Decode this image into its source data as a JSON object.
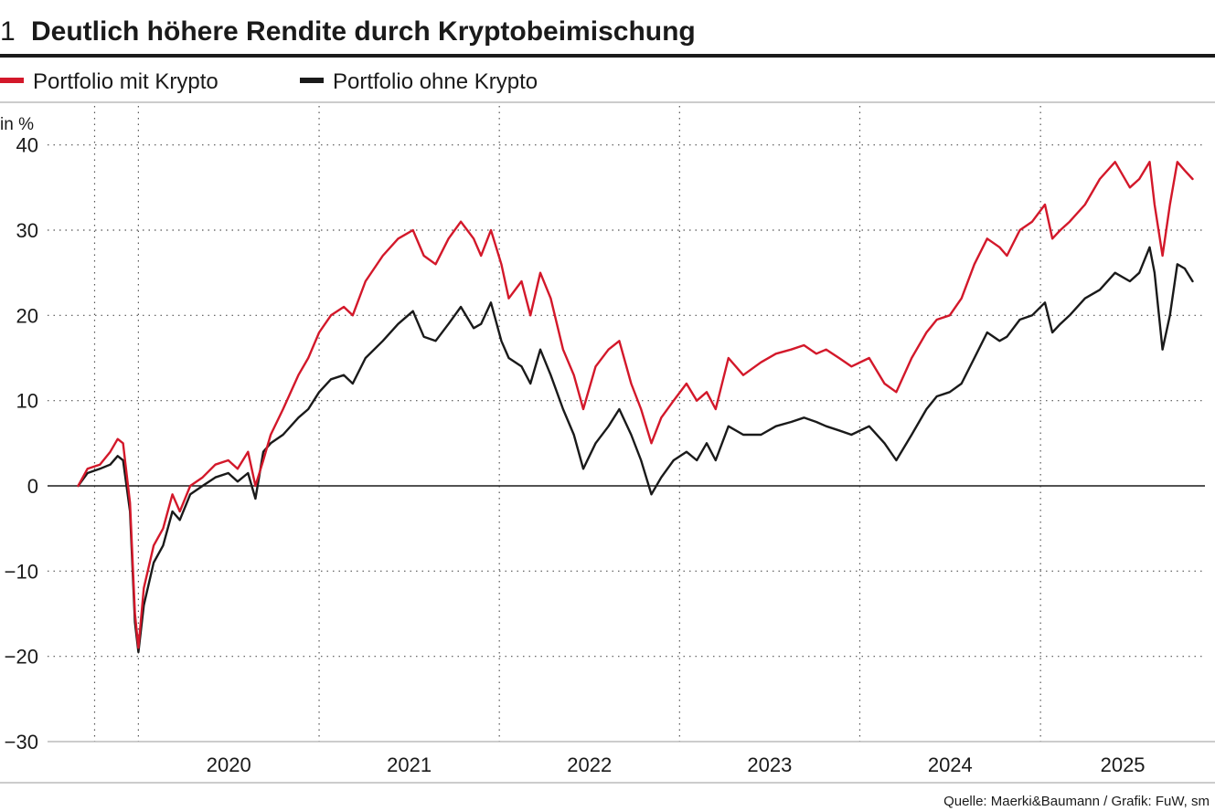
{
  "header": {
    "number": "1",
    "title": "Deutlich höhere Rendite durch Kryptobeimischung"
  },
  "source": "Quelle: Maerki&Baumann / Grafik: FuW, sm",
  "chart_data": {
    "type": "line",
    "ylabel": "in %",
    "ylim": [
      -30,
      45
    ],
    "yticks": [
      40,
      30,
      20,
      10,
      0,
      -10,
      -20,
      -30
    ],
    "xlim": [
      "2019-07-01",
      "2025-11-30"
    ],
    "xticks": [
      {
        "label": "2020",
        "date": "2020-01-01"
      },
      {
        "label": "2021",
        "date": "2021-01-01"
      },
      {
        "label": "2022",
        "date": "2022-01-01"
      },
      {
        "label": "2023",
        "date": "2023-01-01"
      },
      {
        "label": "2024",
        "date": "2024-01-01"
      },
      {
        "label": "2025",
        "date": "2025-01-01"
      }
    ],
    "grid": true,
    "legend": "top-left",
    "series": [
      {
        "name": "Portfolio mit Krypto",
        "color": "#d3182a",
        "points": [
          [
            "2019-09-01",
            0
          ],
          [
            "2019-09-20",
            2
          ],
          [
            "2019-10-15",
            2.5
          ],
          [
            "2019-11-05",
            4
          ],
          [
            "2019-11-20",
            5.5
          ],
          [
            "2019-12-01",
            5
          ],
          [
            "2019-12-15",
            -2
          ],
          [
            "2019-12-25",
            -15
          ],
          [
            "2020-01-01",
            -19
          ],
          [
            "2020-01-12",
            -12
          ],
          [
            "2020-02-01",
            -7
          ],
          [
            "2020-02-20",
            -5
          ],
          [
            "2020-03-10",
            -1
          ],
          [
            "2020-03-25",
            -3
          ],
          [
            "2020-04-15",
            0
          ],
          [
            "2020-05-10",
            1
          ],
          [
            "2020-06-05",
            2.5
          ],
          [
            "2020-07-01",
            3
          ],
          [
            "2020-07-20",
            2
          ],
          [
            "2020-08-10",
            4
          ],
          [
            "2020-08-25",
            0
          ],
          [
            "2020-09-10",
            3
          ],
          [
            "2020-09-25",
            6
          ],
          [
            "2020-10-20",
            9
          ],
          [
            "2020-11-20",
            13
          ],
          [
            "2020-12-10",
            15
          ],
          [
            "2021-01-01",
            18
          ],
          [
            "2021-01-25",
            20
          ],
          [
            "2021-02-20",
            21
          ],
          [
            "2021-03-10",
            20
          ],
          [
            "2021-04-05",
            24
          ],
          [
            "2021-05-10",
            27
          ],
          [
            "2021-06-10",
            29
          ],
          [
            "2021-07-10",
            30
          ],
          [
            "2021-08-01",
            27
          ],
          [
            "2021-08-25",
            26
          ],
          [
            "2021-09-20",
            29
          ],
          [
            "2021-10-15",
            31
          ],
          [
            "2021-11-10",
            29
          ],
          [
            "2021-11-25",
            27
          ],
          [
            "2021-12-15",
            30
          ],
          [
            "2022-01-05",
            26
          ],
          [
            "2022-01-20",
            22
          ],
          [
            "2022-02-15",
            24
          ],
          [
            "2022-03-05",
            20
          ],
          [
            "2022-03-25",
            25
          ],
          [
            "2022-04-15",
            22
          ],
          [
            "2022-05-10",
            16
          ],
          [
            "2022-06-01",
            13
          ],
          [
            "2022-06-20",
            9
          ],
          [
            "2022-07-15",
            14
          ],
          [
            "2022-08-10",
            16
          ],
          [
            "2022-09-01",
            17
          ],
          [
            "2022-09-25",
            12
          ],
          [
            "2022-10-15",
            9
          ],
          [
            "2022-11-05",
            5
          ],
          [
            "2022-11-25",
            8
          ],
          [
            "2022-12-20",
            10
          ],
          [
            "2023-01-15",
            12
          ],
          [
            "2023-02-05",
            10
          ],
          [
            "2023-02-25",
            11
          ],
          [
            "2023-03-15",
            9
          ],
          [
            "2023-04-10",
            15
          ],
          [
            "2023-05-10",
            13
          ],
          [
            "2023-06-15",
            14.5
          ],
          [
            "2023-07-15",
            15.5
          ],
          [
            "2023-08-15",
            16
          ],
          [
            "2023-09-10",
            16.5
          ],
          [
            "2023-10-05",
            15.5
          ],
          [
            "2023-10-25",
            16
          ],
          [
            "2023-11-20",
            15
          ],
          [
            "2023-12-15",
            14
          ],
          [
            "2024-01-20",
            15
          ],
          [
            "2024-02-20",
            12
          ],
          [
            "2024-03-15",
            11
          ],
          [
            "2024-04-15",
            15
          ],
          [
            "2024-05-15",
            18
          ],
          [
            "2024-06-05",
            19.5
          ],
          [
            "2024-07-01",
            20
          ],
          [
            "2024-07-25",
            22
          ],
          [
            "2024-08-20",
            26
          ],
          [
            "2024-09-15",
            29
          ],
          [
            "2024-10-10",
            28
          ],
          [
            "2024-10-25",
            27
          ],
          [
            "2024-11-20",
            30
          ],
          [
            "2024-12-15",
            31
          ],
          [
            "2025-01-10",
            33
          ],
          [
            "2025-01-25",
            29
          ],
          [
            "2025-02-10",
            30
          ],
          [
            "2025-03-01",
            31
          ],
          [
            "2025-04-01",
            33
          ],
          [
            "2025-05-01",
            36
          ],
          [
            "2025-06-01",
            38
          ],
          [
            "2025-07-01",
            35
          ],
          [
            "2025-07-20",
            36
          ],
          [
            "2025-08-10",
            38
          ],
          [
            "2025-08-20",
            33
          ],
          [
            "2025-09-05",
            27
          ],
          [
            "2025-09-20",
            33
          ],
          [
            "2025-10-05",
            38
          ],
          [
            "2025-10-20",
            37
          ],
          [
            "2025-11-05",
            36
          ]
        ]
      },
      {
        "name": "Portfolio ohne Krypto",
        "color": "#1a1a1a",
        "points": [
          [
            "2019-09-01",
            0
          ],
          [
            "2019-09-20",
            1.5
          ],
          [
            "2019-10-15",
            2
          ],
          [
            "2019-11-05",
            2.5
          ],
          [
            "2019-11-20",
            3.5
          ],
          [
            "2019-12-01",
            3
          ],
          [
            "2019-12-15",
            -3
          ],
          [
            "2019-12-25",
            -16
          ],
          [
            "2020-01-01",
            -19.5
          ],
          [
            "2020-01-12",
            -14
          ],
          [
            "2020-02-01",
            -9
          ],
          [
            "2020-02-20",
            -7
          ],
          [
            "2020-03-10",
            -3
          ],
          [
            "2020-03-25",
            -4
          ],
          [
            "2020-04-15",
            -1
          ],
          [
            "2020-05-10",
            0
          ],
          [
            "2020-06-05",
            1
          ],
          [
            "2020-07-01",
            1.5
          ],
          [
            "2020-07-20",
            0.5
          ],
          [
            "2020-08-10",
            1.5
          ],
          [
            "2020-08-25",
            -1.5
          ],
          [
            "2020-09-10",
            4
          ],
          [
            "2020-09-25",
            5
          ],
          [
            "2020-10-20",
            6
          ],
          [
            "2020-11-20",
            8
          ],
          [
            "2020-12-10",
            9
          ],
          [
            "2021-01-01",
            11
          ],
          [
            "2021-01-25",
            12.5
          ],
          [
            "2021-02-20",
            13
          ],
          [
            "2021-03-10",
            12
          ],
          [
            "2021-04-05",
            15
          ],
          [
            "2021-05-10",
            17
          ],
          [
            "2021-06-10",
            19
          ],
          [
            "2021-07-10",
            20.5
          ],
          [
            "2021-08-01",
            17.5
          ],
          [
            "2021-08-25",
            17
          ],
          [
            "2021-09-20",
            19
          ],
          [
            "2021-10-15",
            21
          ],
          [
            "2021-11-10",
            18.5
          ],
          [
            "2021-11-25",
            19
          ],
          [
            "2021-12-15",
            21.5
          ],
          [
            "2022-01-05",
            17
          ],
          [
            "2022-01-20",
            15
          ],
          [
            "2022-02-15",
            14
          ],
          [
            "2022-03-05",
            12
          ],
          [
            "2022-03-25",
            16
          ],
          [
            "2022-04-15",
            13
          ],
          [
            "2022-05-10",
            9
          ],
          [
            "2022-06-01",
            6
          ],
          [
            "2022-06-20",
            2
          ],
          [
            "2022-07-15",
            5
          ],
          [
            "2022-08-10",
            7
          ],
          [
            "2022-09-01",
            9
          ],
          [
            "2022-09-25",
            6
          ],
          [
            "2022-10-15",
            3
          ],
          [
            "2022-11-05",
            -1
          ],
          [
            "2022-11-25",
            1
          ],
          [
            "2022-12-20",
            3
          ],
          [
            "2023-01-15",
            4
          ],
          [
            "2023-02-05",
            3
          ],
          [
            "2023-02-25",
            5
          ],
          [
            "2023-03-15",
            3
          ],
          [
            "2023-04-10",
            7
          ],
          [
            "2023-05-10",
            6
          ],
          [
            "2023-06-15",
            6
          ],
          [
            "2023-07-15",
            7
          ],
          [
            "2023-08-15",
            7.5
          ],
          [
            "2023-09-10",
            8
          ],
          [
            "2023-10-05",
            7.5
          ],
          [
            "2023-10-25",
            7
          ],
          [
            "2023-11-20",
            6.5
          ],
          [
            "2023-12-15",
            6
          ],
          [
            "2024-01-20",
            7
          ],
          [
            "2024-02-20",
            5
          ],
          [
            "2024-03-15",
            3
          ],
          [
            "2024-04-15",
            6
          ],
          [
            "2024-05-15",
            9
          ],
          [
            "2024-06-05",
            10.5
          ],
          [
            "2024-07-01",
            11
          ],
          [
            "2024-07-25",
            12
          ],
          [
            "2024-08-20",
            15
          ],
          [
            "2024-09-15",
            18
          ],
          [
            "2024-10-10",
            17
          ],
          [
            "2024-10-25",
            17.5
          ],
          [
            "2024-11-20",
            19.5
          ],
          [
            "2024-12-15",
            20
          ],
          [
            "2025-01-10",
            21.5
          ],
          [
            "2025-01-25",
            18
          ],
          [
            "2025-02-10",
            19
          ],
          [
            "2025-03-01",
            20
          ],
          [
            "2025-04-01",
            22
          ],
          [
            "2025-05-01",
            23
          ],
          [
            "2025-06-01",
            25
          ],
          [
            "2025-07-01",
            24
          ],
          [
            "2025-07-20",
            25
          ],
          [
            "2025-08-10",
            28
          ],
          [
            "2025-08-20",
            25
          ],
          [
            "2025-09-05",
            16
          ],
          [
            "2025-09-20",
            20
          ],
          [
            "2025-10-05",
            26
          ],
          [
            "2025-10-20",
            25.5
          ],
          [
            "2025-11-05",
            24
          ]
        ]
      }
    ]
  }
}
